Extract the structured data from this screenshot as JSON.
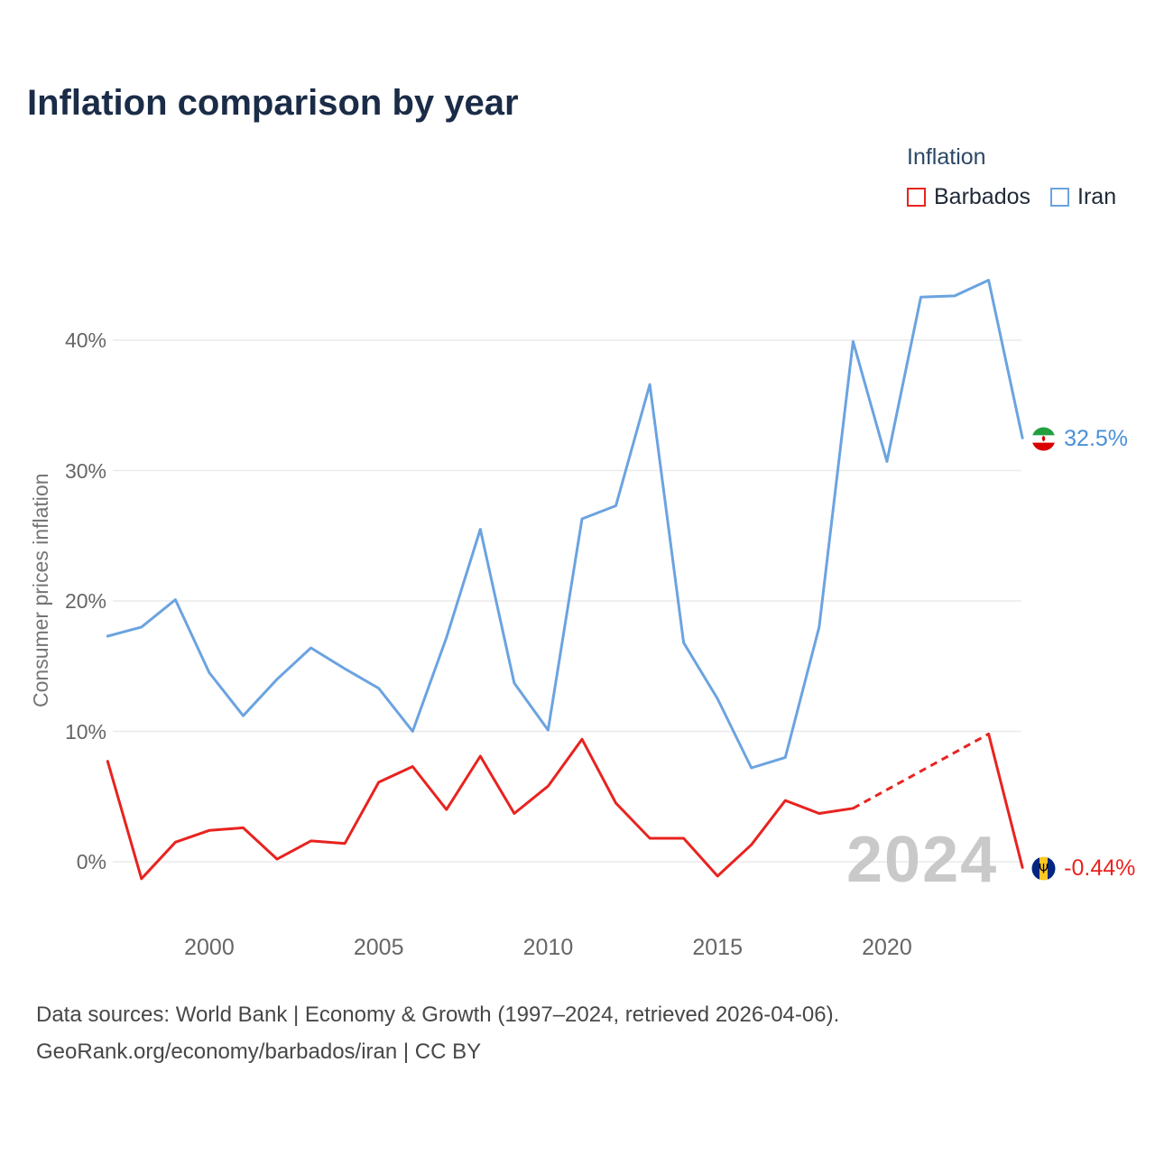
{
  "chart_data": {
    "type": "line",
    "title": "Inflation comparison by year",
    "ylabel": "Consumer prices inflation",
    "watermark": "2024",
    "grid": "horizontal",
    "legend_position": "top-right",
    "ylim": [
      -3,
      47
    ],
    "years": [
      1997,
      1998,
      1999,
      2000,
      2001,
      2002,
      2003,
      2004,
      2005,
      2006,
      2007,
      2008,
      2009,
      2010,
      2011,
      2012,
      2013,
      2014,
      2015,
      2016,
      2017,
      2018,
      2019,
      2020,
      2021,
      2022,
      2023,
      2024
    ],
    "y_ticks": [
      {
        "v": 0,
        "label": "0%"
      },
      {
        "v": 10,
        "label": "10%"
      },
      {
        "v": 20,
        "label": "20%"
      },
      {
        "v": 30,
        "label": "30%"
      },
      {
        "v": 40,
        "label": "40%"
      }
    ],
    "x_ticks": [
      {
        "v": 2000,
        "label": "2000"
      },
      {
        "v": 2005,
        "label": "2005"
      },
      {
        "v": 2010,
        "label": "2010"
      },
      {
        "v": 2015,
        "label": "2015"
      },
      {
        "v": 2020,
        "label": "2020"
      }
    ],
    "series": [
      {
        "name": "Barbados",
        "color": "#e8231f",
        "label_color": "#e8231f",
        "end_label": "-0.44%",
        "values": [
          7.7,
          -1.3,
          1.5,
          2.4,
          2.6,
          0.2,
          1.6,
          1.4,
          6.1,
          7.3,
          4.0,
          8.1,
          3.7,
          5.8,
          9.4,
          4.5,
          1.8,
          1.8,
          -1.1,
          1.3,
          4.7,
          3.7,
          4.1,
          null,
          null,
          null,
          9.8,
          -0.44
        ]
      },
      {
        "name": "Iran",
        "color": "#6ba3e0",
        "label_color": "#4a90d9",
        "end_label": "32.5%",
        "values": [
          17.3,
          18.0,
          20.1,
          14.5,
          11.2,
          14.0,
          16.4,
          14.8,
          13.3,
          10.0,
          17.2,
          25.5,
          13.7,
          10.1,
          26.3,
          27.3,
          36.6,
          16.8,
          12.5,
          7.2,
          8.0,
          18.0,
          39.9,
          30.7,
          43.3,
          43.4,
          44.6,
          32.5
        ]
      }
    ]
  },
  "legend": {
    "title": "Inflation"
  },
  "footer": {
    "line1": "Data sources: World Bank | Economy & Growth (1997–2024, retrieved 2026-04-06).",
    "line2": "GeoRank.org/economy/barbados/iran | CC BY"
  }
}
